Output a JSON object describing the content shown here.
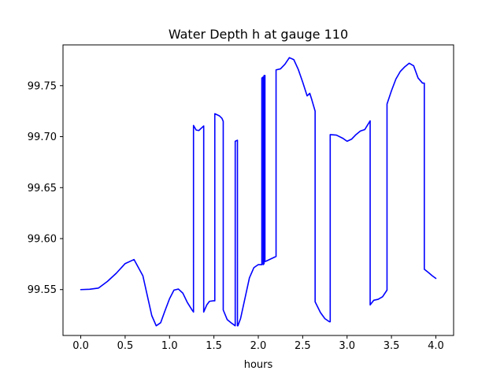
{
  "chart_data": {
    "type": "line",
    "title": "Water Depth h at gauge 110",
    "xlabel": "hours",
    "ylabel": "",
    "xlim": [
      -0.2,
      4.2
    ],
    "ylim": [
      99.505,
      99.79
    ],
    "xticks": [
      0.0,
      0.5,
      1.0,
      1.5,
      2.0,
      2.5,
      3.0,
      3.5,
      4.0
    ],
    "xtick_labels": [
      "0.0",
      "0.5",
      "1.0",
      "1.5",
      "2.0",
      "2.5",
      "3.0",
      "3.5",
      "4.0"
    ],
    "yticks": [
      99.55,
      99.6,
      99.65,
      99.7,
      99.75
    ],
    "ytick_labels": [
      "99.55",
      "99.60",
      "99.65",
      "99.70",
      "99.75"
    ],
    "grid": false,
    "legend": "none",
    "series": [
      {
        "color": "#0000ff",
        "x": [
          0.0,
          0.1,
          0.2,
          0.3,
          0.4,
          0.5,
          0.6,
          0.7,
          0.8,
          0.85,
          0.9,
          0.95,
          1.0,
          1.05,
          1.1,
          1.15,
          1.2,
          1.25,
          1.27,
          1.27,
          1.3,
          1.33,
          1.36,
          1.385,
          1.385,
          1.42,
          1.45,
          1.49,
          1.51,
          1.51,
          1.56,
          1.59,
          1.605,
          1.605,
          1.65,
          1.7,
          1.74,
          1.74,
          1.765,
          1.765,
          1.77,
          1.77,
          1.8,
          1.85,
          1.9,
          1.95,
          2.0,
          2.04,
          2.04,
          2.055,
          2.055,
          2.065,
          2.065,
          2.075,
          2.075,
          2.09,
          2.09,
          2.2,
          2.2,
          2.25,
          2.3,
          2.35,
          2.4,
          2.45,
          2.5,
          2.55,
          2.58,
          2.6,
          2.64,
          2.64,
          2.7,
          2.75,
          2.8,
          2.81,
          2.81,
          2.88,
          2.95,
          3.0,
          3.05,
          3.1,
          3.15,
          3.2,
          3.26,
          3.26,
          3.3,
          3.35,
          3.4,
          3.45,
          3.45,
          3.5,
          3.55,
          3.6,
          3.65,
          3.7,
          3.75,
          3.8,
          3.85,
          3.87,
          3.87,
          3.92,
          3.96,
          4.0
        ],
        "y": [
          99.55,
          99.5503,
          99.5515,
          99.558,
          99.566,
          99.5755,
          99.5795,
          99.5635,
          99.5245,
          99.5145,
          99.5175,
          99.5295,
          99.541,
          99.5495,
          99.5505,
          99.5465,
          99.5375,
          99.5305,
          99.528,
          99.711,
          99.7065,
          99.706,
          99.7085,
          99.7105,
          99.528,
          99.535,
          99.5385,
          99.539,
          99.539,
          99.7225,
          99.7205,
          99.718,
          99.715,
          99.53,
          99.5205,
          99.517,
          99.5145,
          99.6955,
          99.6965,
          99.5145,
          99.5145,
          99.5145,
          99.5215,
          99.5415,
          99.5615,
          99.5715,
          99.5745,
          99.5745,
          99.7575,
          99.7585,
          99.5745,
          99.5755,
          99.76,
          99.76,
          99.5775,
          99.578,
          99.578,
          99.5825,
          99.7655,
          99.7665,
          99.771,
          99.7775,
          99.7755,
          99.766,
          99.7535,
          99.74,
          99.7425,
          99.737,
          99.725,
          99.538,
          99.5275,
          99.5215,
          99.5185,
          99.5185,
          99.702,
          99.7015,
          99.6985,
          99.6955,
          99.6975,
          99.702,
          99.7055,
          99.707,
          99.7155,
          99.535,
          99.5395,
          99.5405,
          99.543,
          99.5495,
          99.732,
          99.745,
          99.7565,
          99.764,
          99.7685,
          99.772,
          99.7695,
          99.7575,
          99.7525,
          99.7525,
          99.57,
          99.5665,
          99.5635,
          99.561
        ]
      }
    ]
  }
}
